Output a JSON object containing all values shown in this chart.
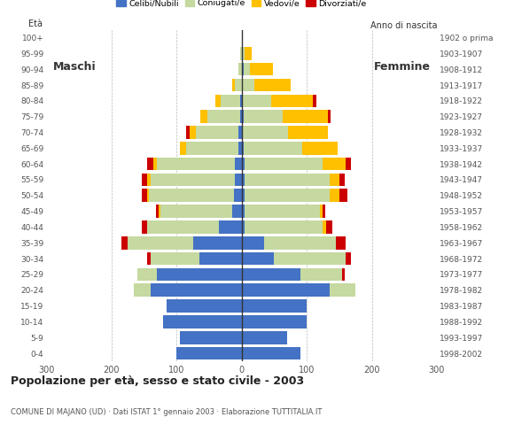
{
  "age_groups": [
    "0-4",
    "5-9",
    "10-14",
    "15-19",
    "20-24",
    "25-29",
    "30-34",
    "35-39",
    "40-44",
    "45-49",
    "50-54",
    "55-59",
    "60-64",
    "65-69",
    "70-74",
    "75-79",
    "80-84",
    "85-89",
    "90-94",
    "95-99",
    "100+"
  ],
  "birth_years": [
    "1998-2002",
    "1993-1997",
    "1988-1992",
    "1983-1987",
    "1978-1982",
    "1973-1977",
    "1968-1972",
    "1963-1967",
    "1958-1962",
    "1953-1957",
    "1948-1952",
    "1943-1947",
    "1938-1942",
    "1933-1937",
    "1928-1932",
    "1923-1927",
    "1918-1922",
    "1913-1917",
    "1908-1912",
    "1903-1907",
    "1902 o prima"
  ],
  "males": {
    "celibe": [
      100,
      95,
      120,
      115,
      140,
      130,
      65,
      75,
      35,
      15,
      12,
      10,
      10,
      5,
      5,
      2,
      2,
      0,
      0,
      0,
      0
    ],
    "coniugato": [
      0,
      0,
      0,
      0,
      25,
      30,
      75,
      100,
      110,
      110,
      130,
      130,
      120,
      80,
      65,
      50,
      30,
      10,
      5,
      2,
      0
    ],
    "vedovo": [
      0,
      0,
      0,
      0,
      0,
      0,
      0,
      0,
      0,
      2,
      3,
      5,
      5,
      10,
      10,
      12,
      8,
      5,
      0,
      0,
      0
    ],
    "divorziato": [
      0,
      0,
      0,
      0,
      0,
      0,
      5,
      10,
      8,
      5,
      8,
      8,
      10,
      0,
      5,
      0,
      0,
      0,
      0,
      0,
      0
    ]
  },
  "females": {
    "nubile": [
      90,
      70,
      100,
      100,
      135,
      90,
      50,
      35,
      5,
      5,
      5,
      5,
      5,
      3,
      2,
      3,
      0,
      0,
      3,
      0,
      0
    ],
    "coniugata": [
      0,
      0,
      0,
      0,
      40,
      65,
      110,
      110,
      120,
      115,
      130,
      130,
      120,
      90,
      70,
      60,
      45,
      20,
      10,
      5,
      0
    ],
    "vedova": [
      0,
      0,
      0,
      0,
      0,
      0,
      0,
      0,
      5,
      5,
      15,
      15,
      35,
      55,
      60,
      70,
      65,
      55,
      35,
      10,
      0
    ],
    "divorziata": [
      0,
      0,
      0,
      0,
      0,
      3,
      8,
      15,
      10,
      3,
      12,
      8,
      8,
      0,
      0,
      3,
      5,
      0,
      0,
      0,
      0
    ]
  },
  "colors": {
    "celibe": "#4472c4",
    "coniugato": "#c5d9a0",
    "vedovo": "#ffc000",
    "divorziato": "#cc0000"
  },
  "legend_labels": [
    "Celibi/Nubili",
    "Coniugati/e",
    "Vedovi/e",
    "Divorziati/e"
  ],
  "title": "Popolazione per età, sesso e stato civile - 2003",
  "subtitle": "COMUNE DI MAJANO (UD) · Dati ISTAT 1° gennaio 2003 · Elaborazione TUTTITALIA.IT",
  "label_maschi": "Maschi",
  "label_femmine": "Femmine",
  "label_eta": "Età",
  "label_anno": "Anno di nascita",
  "xlim": 300,
  "background_color": "#ffffff",
  "grid_color": "#999999"
}
